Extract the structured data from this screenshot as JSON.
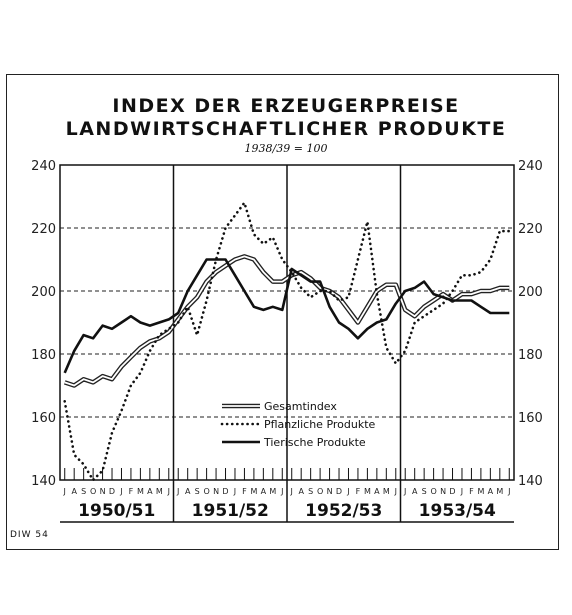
{
  "chart_data": {
    "type": "line",
    "title": "INDEX DER ERZEUGERPREISE",
    "subtitle": "LANDWIRTSCHAFTLICHER PRODUKTE",
    "base_note": "1938/39 = 100",
    "footer": "DIW 54",
    "ylim": [
      140,
      240
    ],
    "yticks": [
      "140",
      "160",
      "180",
      "200",
      "220",
      "240"
    ],
    "month_labels": [
      "J",
      "A",
      "S",
      "O",
      "N",
      "D",
      "J",
      "F",
      "M",
      "A",
      "M",
      "J"
    ],
    "years": [
      "1950/51",
      "1951/52",
      "1952/53",
      "1953/54"
    ],
    "grid": "dashed-horizontal",
    "legend_position": "center-bottom",
    "series": [
      {
        "name": "Gesamtindex",
        "style": "double",
        "values": [
          171,
          170,
          172,
          171,
          173,
          172,
          176,
          179,
          182,
          184,
          185,
          187,
          191,
          195,
          198,
          203,
          206,
          208,
          210,
          211,
          210,
          206,
          203,
          203,
          205,
          206,
          204,
          201,
          200,
          198,
          194,
          190,
          195,
          200,
          202,
          202,
          194,
          192,
          195,
          197,
          199,
          197,
          199,
          199,
          200,
          200,
          201,
          201
        ]
      },
      {
        "name": "Pflanzliche Produkte",
        "style": "dotted",
        "values": [
          165,
          148,
          145,
          140,
          143,
          155,
          162,
          170,
          174,
          181,
          186,
          188,
          190,
          195,
          186,
          197,
          210,
          220,
          224,
          228,
          218,
          215,
          217,
          210,
          206,
          201,
          198,
          200,
          200,
          197,
          198,
          210,
          222,
          199,
          182,
          177,
          181,
          190,
          192,
          194,
          196,
          200,
          205,
          205,
          206,
          210,
          219,
          219
        ]
      },
      {
        "name": "Tierische Produkte",
        "style": "solid",
        "values": [
          174,
          181,
          186,
          185,
          189,
          188,
          190,
          192,
          190,
          189,
          190,
          191,
          193,
          200,
          205,
          210,
          210,
          210,
          205,
          200,
          195,
          194,
          195,
          194,
          207,
          205,
          203,
          203,
          195,
          190,
          188,
          185,
          188,
          190,
          191,
          196,
          200,
          201,
          203,
          199,
          198,
          197,
          197,
          197,
          195,
          193,
          193,
          193
        ]
      }
    ]
  }
}
